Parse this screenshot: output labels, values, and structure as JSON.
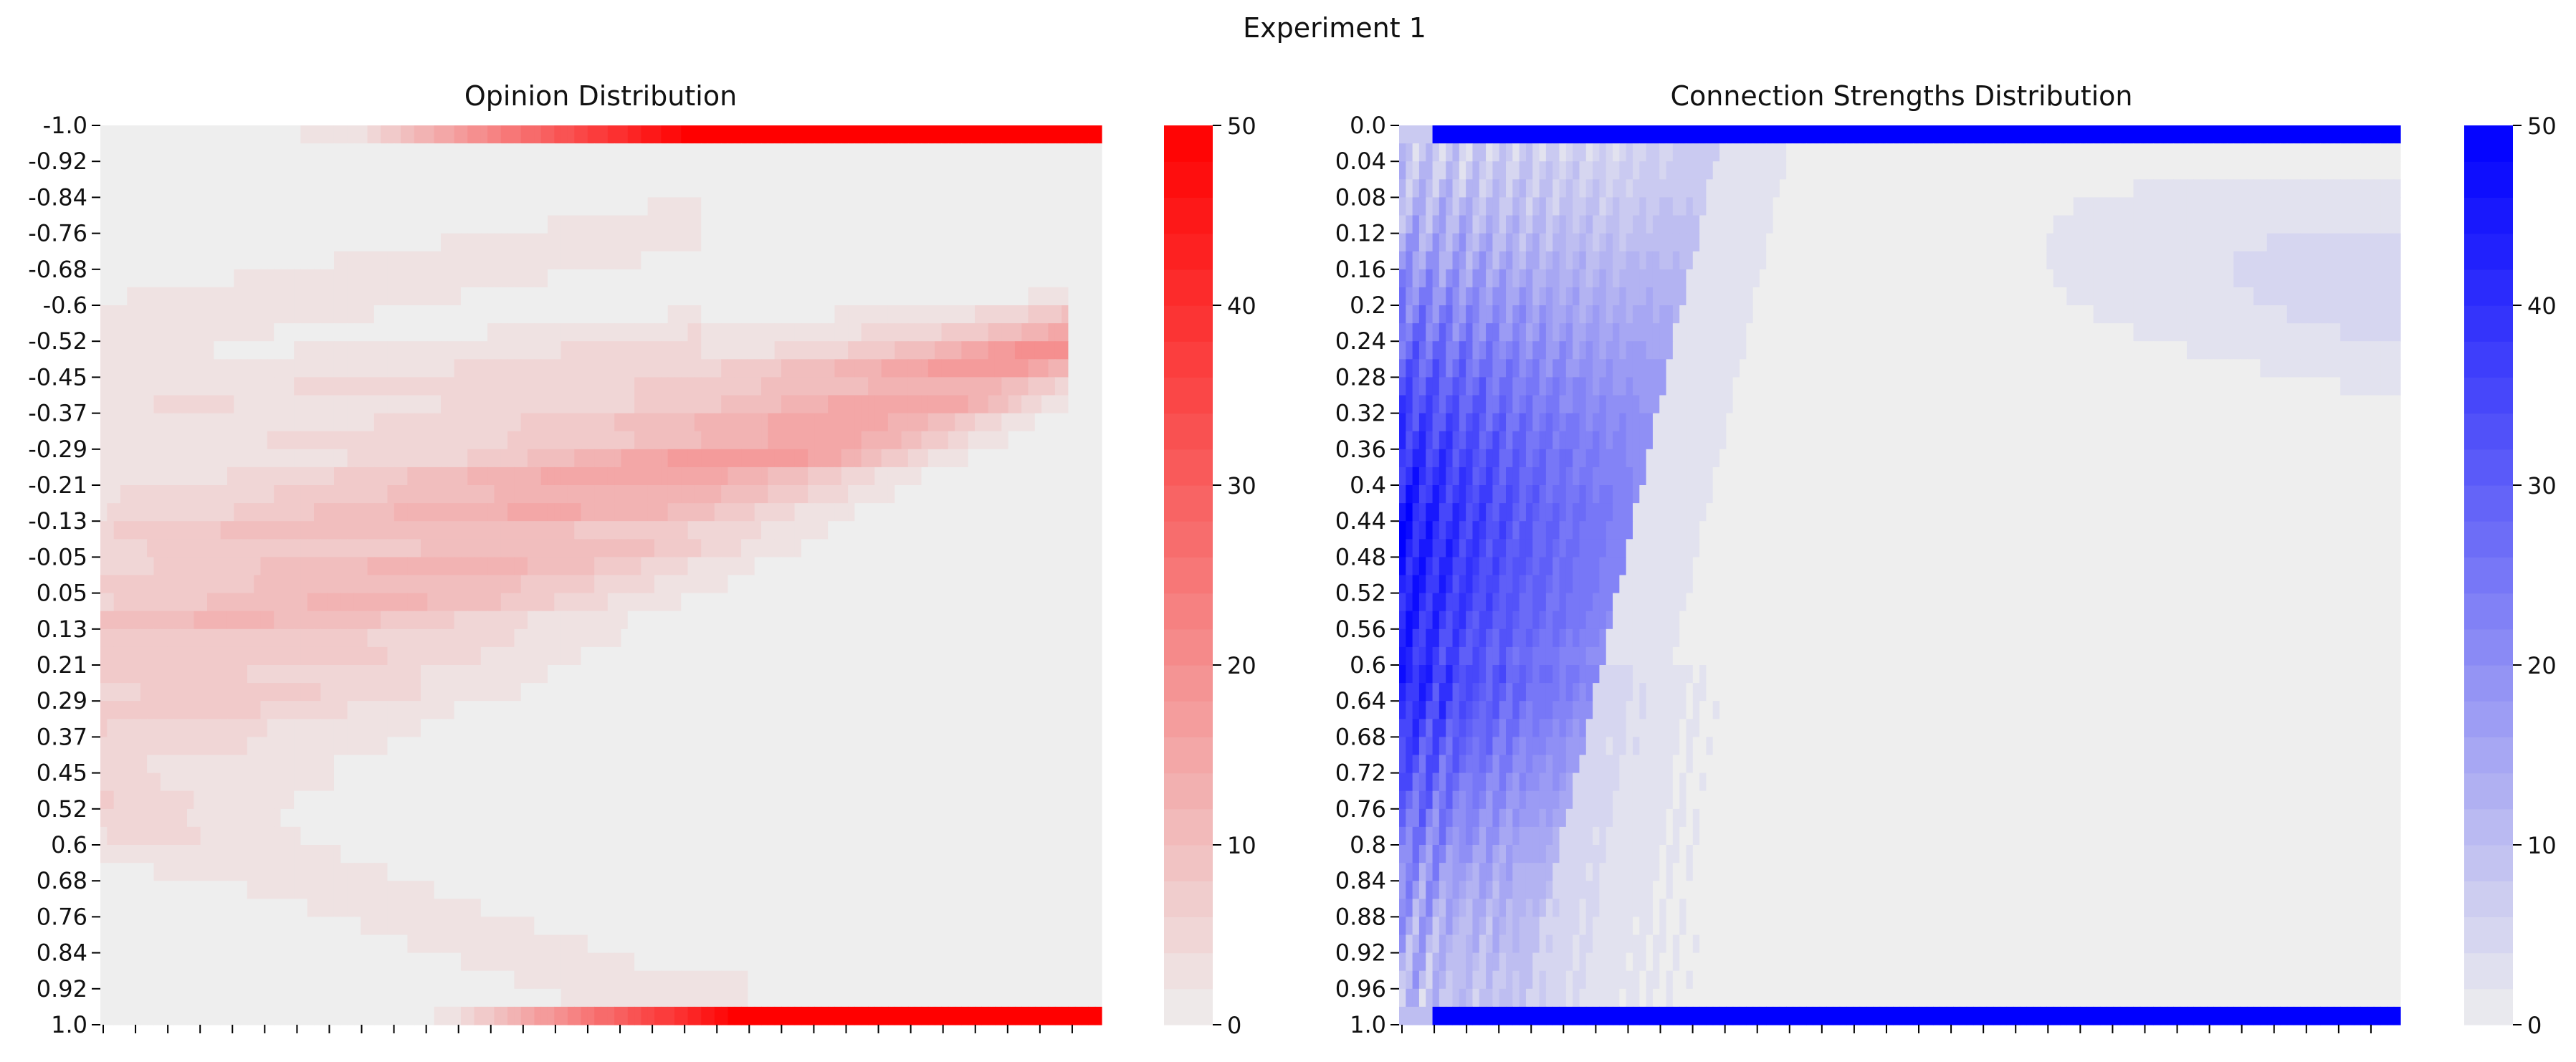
{
  "figure": {
    "title": "Experiment 1"
  },
  "chart_data": [
    {
      "type": "heatmap",
      "title": "Opinion Distribution",
      "color": "#ff0000",
      "base_color": "#eeeeee",
      "colorbar": {
        "min": 0,
        "max": 50,
        "ticks": [
          "0",
          "10",
          "20",
          "30",
          "40",
          "50"
        ]
      },
      "y_tick_labels": [
        "-1.0",
        "-0.92",
        "-0.84",
        "-0.76",
        "-0.68",
        "-0.6",
        "-0.52",
        "-0.45",
        "-0.37",
        "-0.29",
        "-0.21",
        "-0.13",
        "-0.05",
        "0.05",
        "0.13",
        "0.21",
        "0.29",
        "0.37",
        "0.45",
        "0.52",
        "0.6",
        "0.68",
        "0.76",
        "0.84",
        "0.92",
        "1.0"
      ],
      "x_tick_count": 31,
      "grid": false
    },
    {
      "type": "heatmap",
      "title": "Connection Strengths Distribution",
      "color": "#0000ff",
      "base_color": "#eeeeee",
      "colorbar": {
        "min": 0,
        "max": 50,
        "ticks": [
          "0",
          "10",
          "20",
          "30",
          "40",
          "50"
        ]
      },
      "y_tick_labels": [
        "0.0",
        "0.04",
        "0.08",
        "0.12",
        "0.16",
        "0.2",
        "0.24",
        "0.28",
        "0.32",
        "0.36",
        "0.4",
        "0.44",
        "0.48",
        "0.52",
        "0.56",
        "0.6",
        "0.64",
        "0.68",
        "0.72",
        "0.76",
        "0.8",
        "0.84",
        "0.88",
        "0.92",
        "0.96",
        "1.0"
      ],
      "x_tick_count": 31,
      "grid": false
    }
  ]
}
